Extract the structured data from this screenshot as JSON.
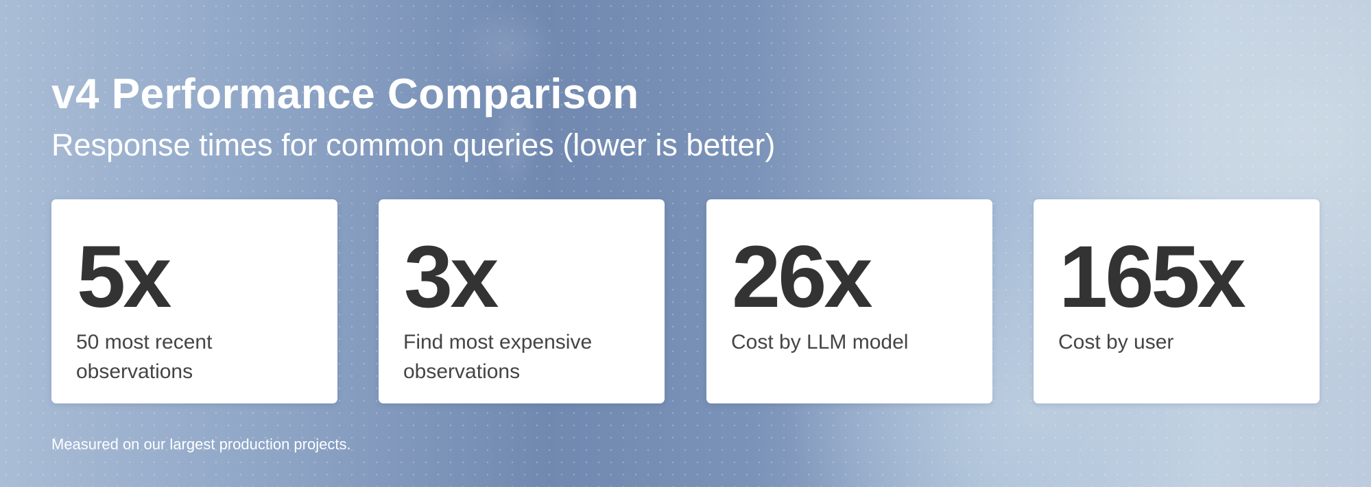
{
  "header": {
    "title": "v4 Performance Comparison",
    "subtitle": "Response times for common queries (lower is better)"
  },
  "cards": [
    {
      "value": "5x",
      "label": "50 most recent observations"
    },
    {
      "value": "3x",
      "label": "Find most expensive observations"
    },
    {
      "value": "26x",
      "label": "Cost by LLM model"
    },
    {
      "value": "165x",
      "label": "Cost by user"
    }
  ],
  "footer": {
    "note": "Measured on our largest production projects."
  },
  "colors": {
    "card_bg": "#ffffff",
    "number": "#333333",
    "text_on_bg": "#ffffff"
  }
}
